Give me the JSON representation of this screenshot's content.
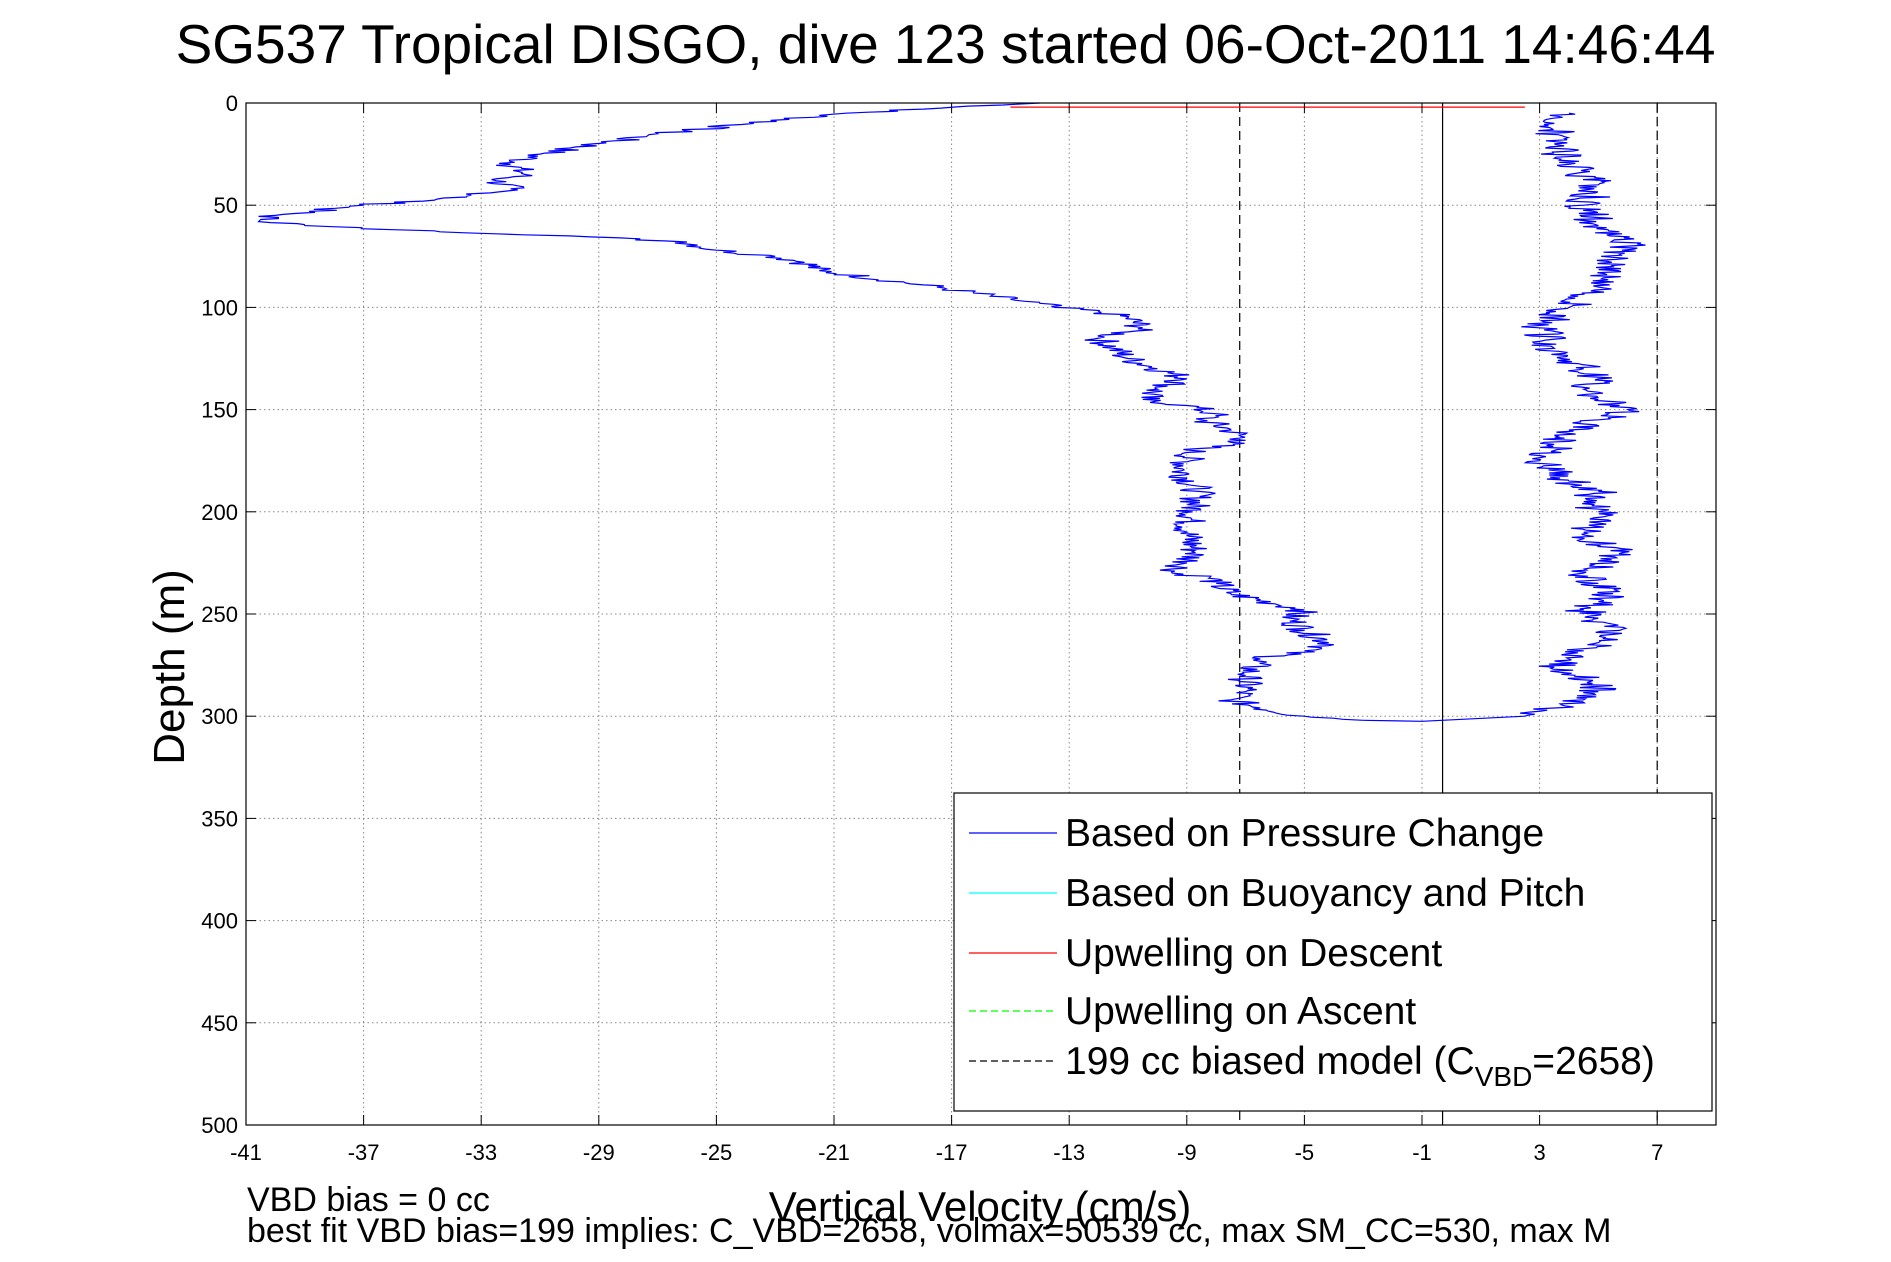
{
  "chart_data": {
    "type": "line",
    "title": "SG537 Tropical DISGO, dive 123 started 06-Oct-2011 14:46:44",
    "xlabel": "Vertical Velocity (cm/s)",
    "ylabel": "Depth (m)",
    "xlim": [
      -41,
      9
    ],
    "ylim": [
      500,
      0
    ],
    "y_reversed": true,
    "grid": true,
    "legend_position": "lower-right",
    "x_ticks": [
      "-41",
      "-37",
      "-33",
      "-29",
      "-25",
      "-21",
      "-17",
      "-13",
      "-9",
      "-5",
      "-1",
      "3",
      "7"
    ],
    "y_ticks": [
      "0",
      "50",
      "100",
      "150",
      "200",
      "250",
      "300",
      "350",
      "400",
      "450",
      "500"
    ],
    "legend": [
      {
        "label": "Based on Pressure Change",
        "color": "#0000ff",
        "style": "solid"
      },
      {
        "label": "Based on Buoyancy and Pitch",
        "color": "#00ffff",
        "style": "solid"
      },
      {
        "label": "Upwelling on Descent",
        "color": "#ff0000",
        "style": "solid"
      },
      {
        "label": "Upwelling on Ascent",
        "color": "#00ff00",
        "style": "dashed"
      },
      {
        "label": "199 cc biased model (C",
        "subscript": "VBD",
        "label_end": "=2658)",
        "color": "#000000",
        "style": "dashed"
      }
    ],
    "series": [
      {
        "name": "Based on Pressure Change",
        "color": "#0000ff",
        "descent": {
          "velocity": [
            -14,
            -20.6,
            -27,
            -31,
            -32,
            -31.5,
            -32.5,
            -32,
            -33.5,
            -37,
            -40,
            -40.5,
            -39,
            -36,
            -30,
            -26,
            -25,
            -23,
            -22,
            -21.5,
            -17.5,
            -15,
            -14,
            -13.5,
            -12,
            -11,
            -10.5,
            -11,
            -12,
            -11.5,
            -11,
            -10,
            -9,
            -10,
            -10.5,
            -9,
            -8,
            -8.5,
            -7.5,
            -7,
            -8.8,
            -9.2,
            -8.6,
            -8.8,
            -9,
            -8.7,
            -9,
            -9.5,
            -8.2,
            -8,
            -7.5,
            -6,
            -5,
            -5.5,
            -5,
            -4,
            -5,
            -6.5,
            -7,
            -7,
            -7.5,
            -6.5,
            -5,
            -3
          ],
          "depth": [
            0,
            5,
            15,
            25,
            30,
            35,
            38,
            42,
            46,
            50,
            55,
            57,
            60,
            62,
            65,
            68,
            72,
            75,
            78,
            82,
            90,
            96,
            98,
            100,
            102,
            105,
            110,
            112,
            115,
            120,
            125,
            130,
            135,
            140,
            145,
            148,
            152,
            155,
            160,
            165,
            170,
            180,
            190,
            200,
            210,
            220,
            225,
            230,
            232,
            235,
            240,
            245,
            248,
            252,
            258,
            265,
            268,
            272,
            280,
            288,
            292,
            296,
            300,
            302
          ]
        },
        "ascent": {
          "velocity": [
            2.5,
            3.5,
            4.5,
            5,
            4.8,
            4.2,
            3.5,
            4,
            4.5,
            5,
            5.5,
            5.2,
            5,
            4.5,
            5,
            5.5,
            5,
            4.5,
            5.5,
            5.8,
            5,
            4.5,
            5,
            4.5,
            5,
            4,
            3,
            3.5,
            4,
            5,
            6,
            5,
            4.5,
            5,
            4.5,
            3.5,
            3,
            4,
            5,
            5.5,
            6,
            5,
            4.5,
            5,
            4,
            3.5,
            3.5,
            4
          ],
          "depth": [
            300,
            296,
            292,
            288,
            284,
            280,
            276,
            272,
            268,
            264,
            260,
            256,
            252,
            248,
            244,
            240,
            235,
            230,
            225,
            220,
            215,
            210,
            200,
            195,
            190,
            185,
            175,
            170,
            160,
            155,
            150,
            145,
            140,
            135,
            130,
            120,
            110,
            100,
            90,
            80,
            70,
            60,
            50,
            40,
            30,
            20,
            10,
            5
          ]
        }
      },
      {
        "name": "Upwelling on Descent",
        "color": "#ff0000",
        "velocity": [
          -15,
          2.5
        ],
        "depth": [
          2,
          2
        ]
      },
      {
        "name": "199 cc biased model",
        "color": "#000000",
        "style": "dashed",
        "lines_at_x": [
          -7.2,
          7
        ]
      }
    ],
    "reference_line_x": -0.3
  },
  "annotations": {
    "note1": "VBD bias = 0 cc",
    "note2": "best fit VBD bias=199 implies: C_VBD=2658, volmax=50539 cc, max SM_CC=530, max M"
  }
}
